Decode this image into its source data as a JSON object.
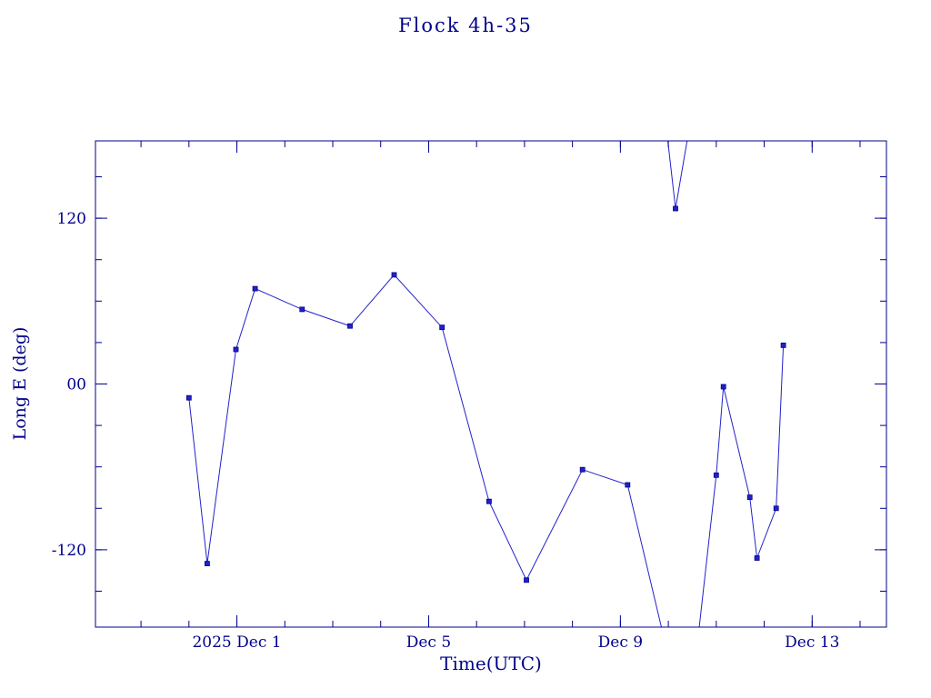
{
  "chart_data": {
    "type": "line",
    "title": "Flock 4h-35",
    "xlabel": "Time(UTC)",
    "ylabel": "Long E (deg)",
    "line_color": "#2222cc",
    "marker_color": "#2222cc",
    "frame_color": "#00008b",
    "text_color": "#00008b",
    "background": "#ffffff",
    "x_unit": "day of December 2025 (0 = Nov 30 00:00 UTC)",
    "xlim": [
      -1.95,
      14.55
    ],
    "ylim": [
      -176,
      176
    ],
    "xticks": [
      {
        "value": 1,
        "label": "2025 Dec 1"
      },
      {
        "value": 5,
        "label": "Dec 5"
      },
      {
        "value": 9,
        "label": "Dec 9"
      },
      {
        "value": 13,
        "label": "Dec 13"
      }
    ],
    "x_minor_step": 1,
    "yticks": [
      {
        "value": 120,
        "label": "120"
      },
      {
        "value": 0,
        "label": "00"
      },
      {
        "value": -120,
        "label": "-120"
      }
    ],
    "y_minor_step": 30,
    "segments": [
      {
        "points": [
          [
            0.0,
            -10
          ],
          [
            0.38,
            -130
          ],
          [
            0.98,
            25
          ],
          [
            1.38,
            69
          ],
          [
            2.36,
            54
          ],
          [
            3.36,
            42
          ],
          [
            4.28,
            79
          ],
          [
            5.28,
            41
          ],
          [
            6.26,
            -85
          ],
          [
            7.04,
            -142
          ],
          [
            8.21,
            -62
          ],
          [
            9.15,
            -73
          ],
          [
            9.95,
            -190
          ]
        ]
      },
      {
        "points": [
          [
            9.95,
            188
          ],
          [
            10.15,
            127
          ],
          [
            10.45,
            188
          ]
        ]
      },
      {
        "points": [
          [
            10.6,
            -190
          ],
          [
            11.0,
            -66
          ],
          [
            11.15,
            -2
          ],
          [
            11.7,
            -82
          ],
          [
            11.85,
            -126
          ],
          [
            12.25,
            -90
          ],
          [
            12.4,
            28
          ]
        ]
      }
    ],
    "note": "values outside ylim are longitude wrap points clipped by the plot frame"
  }
}
